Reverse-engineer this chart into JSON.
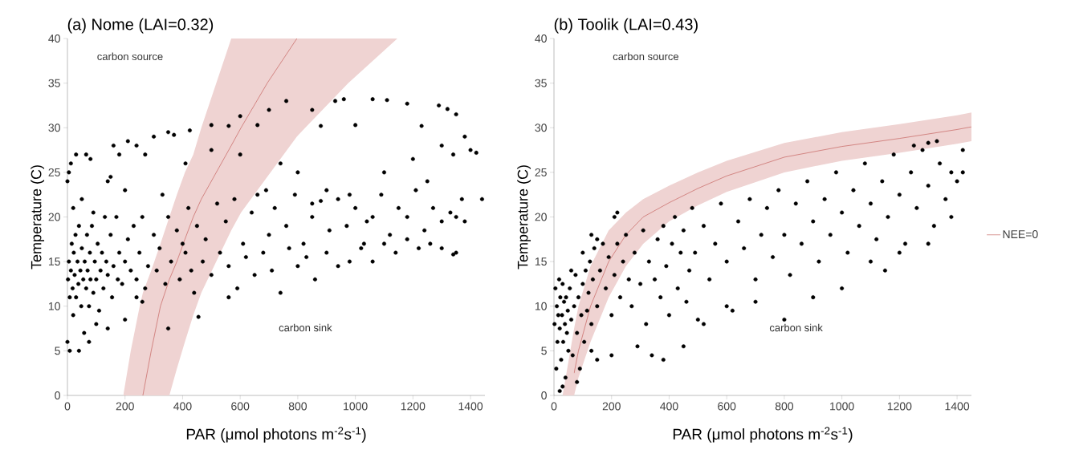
{
  "chart_data": [
    {
      "type": "scatter",
      "title": "(a) Nome (LAI=0.32)",
      "xlabel": "PAR (μmol photons m$^{-2}$s$^{-1}$)",
      "ylabel": "Temperature (C)",
      "annotations": [
        "carbon source",
        "carbon sink"
      ],
      "xlim": [
        0,
        1450
      ],
      "ylim": [
        0,
        40
      ],
      "xticks": [
        0,
        200,
        400,
        600,
        800,
        1000,
        1200,
        1400
      ],
      "yticks": [
        0,
        5,
        10,
        15,
        20,
        25,
        30,
        35,
        40
      ],
      "grid": false,
      "series": [
        {
          "type": "scatter",
          "color": "#000000",
          "marker": "circle",
          "x": [
            2,
            5,
            8,
            12,
            15,
            18,
            20,
            22,
            25,
            28,
            30,
            35,
            38,
            40,
            45,
            48,
            50,
            55,
            58,
            60,
            65,
            68,
            70,
            75,
            78,
            80,
            85,
            90,
            95,
            100,
            105,
            110,
            115,
            120,
            125,
            130,
            135,
            140,
            150,
            155,
            160,
            170,
            175,
            180,
            190,
            200,
            210,
            220,
            230,
            240,
            250,
            260,
            270,
            280,
            0,
            8,
            40,
            75,
            100,
            140,
            200,
            240,
            260,
            350,
            455,
            0,
            5,
            12,
            30,
            65,
            80,
            140,
            160,
            180,
            210,
            240,
            270,
            300,
            350,
            370,
            425,
            500,
            560,
            600,
            660,
            700,
            760,
            850,
            880,
            930,
            960,
            1000,
            1060,
            1110,
            1180,
            1230,
            1290,
            1320,
            1350,
            1400,
            1420,
            20,
            50,
            90,
            150,
            200,
            330,
            410,
            500,
            600,
            690,
            740,
            800,
            850,
            900,
            980,
            1040,
            1100,
            1200,
            1250,
            1300,
            1340,
            1380,
            300,
            320,
            350,
            380,
            400,
            420,
            450,
            480,
            520,
            550,
            580,
            610,
            640,
            660,
            700,
            720,
            760,
            790,
            820,
            850,
            880,
            910,
            940,
            970,
            1000,
            1030,
            1060,
            1090,
            1120,
            1150,
            1180,
            1210,
            1240,
            1270,
            1300,
            1330,
            1350,
            1370,
            1380,
            310,
            340,
            360,
            390,
            410,
            430,
            440,
            470,
            500,
            530,
            560,
            590,
            620,
            650,
            680,
            710,
            740,
            770,
            800,
            830,
            860,
            900,
            940,
            980,
            1020,
            1060,
            1100,
            1140,
            1180,
            1220,
            1260,
            1300,
            1340,
            1440,
            1350,
            560
          ],
          "values": [
            13,
            15,
            11,
            14,
            17,
            12,
            9,
            16,
            13.5,
            18,
            11,
            15,
            12.5,
            19,
            14,
            10,
            16.5,
            13,
            7,
            15,
            12,
            18,
            14,
            10,
            16,
            13,
            19,
            11.5,
            15,
            13,
            17,
            9.5,
            14,
            16,
            12,
            20,
            15,
            13.5,
            18,
            11,
            14.5,
            20,
            13,
            16,
            12.5,
            15,
            17.5,
            14,
            19,
            13,
            16,
            20,
            12,
            14.5,
            6,
            5,
            5,
            6,
            8,
            7.5,
            8.5,
            11,
            10.5,
            7.5,
            8.8,
            24,
            25,
            26,
            27,
            27,
            26.5,
            24,
            28,
            27,
            28.5,
            28,
            27,
            29,
            29.5,
            29.2,
            29.7,
            30.3,
            30.2,
            31.3,
            30.3,
            32,
            33,
            32,
            30.2,
            33,
            33.2,
            30.3,
            33.2,
            33.1,
            32.7,
            30.2,
            32.5,
            32.1,
            31.5,
            27.5,
            27.2,
            21,
            22,
            20.5,
            24.5,
            23,
            22.5,
            26,
            27.5,
            27,
            23,
            26,
            25,
            21.5,
            23,
            22.5,
            19.5,
            25,
            26.5,
            24,
            28,
            27,
            29,
            18,
            16.5,
            20,
            18.5,
            17,
            21,
            19,
            17.5,
            21.5,
            19.5,
            22,
            17,
            20.5,
            22.5,
            18,
            21,
            19,
            22.5,
            17,
            20,
            21.8,
            18.5,
            22,
            19,
            21,
            17,
            20,
            22.5,
            18,
            21,
            20,
            23,
            18.5,
            21,
            19.5,
            20.5,
            20,
            22,
            19.5,
            14,
            12.5,
            15,
            13,
            16,
            14,
            11.5,
            15,
            13.5,
            16,
            14.5,
            12,
            15.5,
            13.5,
            16,
            14,
            11.5,
            16.5,
            14.5,
            15.5,
            13,
            16,
            14.5,
            15,
            16.5,
            15,
            17,
            16,
            17.5,
            16.5,
            17,
            16.5,
            15.8,
            22,
            16,
            11
          ]
        },
        {
          "type": "line",
          "color": "#c0504d",
          "line_style": "solid",
          "marker": "none",
          "x": [
            194,
            220,
            251,
            262,
            291,
            323,
            354,
            380,
            408,
            437,
            465,
            517,
            569,
            603,
            694,
            797,
            826,
            975,
            1146
          ],
          "values": [
            null,
            null,
            null,
            0,
            5,
            10,
            13,
            15,
            17.5,
            20,
            22,
            25,
            28,
            30,
            35,
            40,
            null,
            null,
            null
          ],
          "upper": [
            0,
            5,
            10,
            11.5,
            14,
            17,
            20,
            22.5,
            25,
            27,
            30,
            35,
            40,
            40,
            40,
            40,
            40,
            40,
            40
          ],
          "lower": [
            0,
            0,
            0,
            0,
            0,
            0,
            0,
            3,
            6,
            9,
            11.5,
            15,
            18.5,
            20.5,
            24.5,
            29,
            30,
            35,
            40
          ]
        }
      ]
    },
    {
      "type": "scatter",
      "title": "(b) Toolik (LAI=0.43)",
      "xlabel": "PAR (μmol photons m$^{-2}$s$^{-1}$)",
      "ylabel": "Temperature (C)",
      "annotations": [
        "carbon source",
        "carbon sink"
      ],
      "xlim": [
        0,
        1450
      ],
      "ylim": [
        0,
        40
      ],
      "xticks": [
        0,
        200,
        400,
        600,
        800,
        1000,
        1200,
        1400
      ],
      "yticks": [
        0,
        5,
        10,
        15,
        20,
        25,
        30,
        35,
        40
      ],
      "grid": false,
      "legend": "right",
      "series": [
        {
          "type": "scatter",
          "color": "#000000",
          "marker": "circle",
          "x": [
            2,
            5,
            8,
            10,
            12,
            15,
            18,
            20,
            22,
            25,
            28,
            30,
            32,
            35,
            38,
            40,
            42,
            45,
            48,
            50,
            55,
            60,
            65,
            70,
            75,
            80,
            85,
            90,
            95,
            100,
            105,
            110,
            115,
            120,
            125,
            130,
            135,
            140,
            150,
            160,
            170,
            180,
            190,
            200,
            210,
            220,
            230,
            240,
            250,
            260,
            270,
            280,
            290,
            300,
            310,
            320,
            330,
            340,
            350,
            360,
            370,
            380,
            390,
            400,
            410,
            420,
            430,
            440,
            450,
            460,
            470,
            480,
            490,
            500,
            520,
            540,
            560,
            580,
            600,
            620,
            640,
            660,
            680,
            700,
            720,
            740,
            760,
            780,
            800,
            820,
            840,
            860,
            880,
            900,
            920,
            940,
            960,
            980,
            1000,
            1020,
            1040,
            1060,
            1080,
            1100,
            1120,
            1140,
            1160,
            1180,
            1200,
            1220,
            1240,
            1260,
            1280,
            1300,
            1320,
            1340,
            1360,
            1380,
            1400,
            1420,
            60,
            100,
            130,
            150,
            210,
            220,
            1250,
            1300,
            1330,
            20,
            30,
            80,
            130,
            150,
            200,
            380,
            450,
            520,
            600,
            700,
            800,
            900,
            1000,
            1100,
            1150,
            1200,
            1300,
            1380,
            1420
          ],
          "values": [
            8,
            12,
            3,
            10,
            6,
            9,
            13,
            7.5,
            11,
            4,
            9,
            12.5,
            6,
            10.5,
            8,
            2,
            11,
            7,
            9.5,
            5,
            12,
            8.5,
            4.5,
            10,
            13.5,
            7,
            11,
            3,
            9,
            12.5,
            6,
            14,
            9.5,
            11.5,
            15,
            8,
            13,
            16.5,
            10,
            14,
            17,
            12,
            15.5,
            9,
            13.5,
            17,
            11,
            15,
            18,
            13,
            10,
            16,
            5.5,
            12.5,
            18.5,
            8,
            15,
            4.5,
            13,
            17.5,
            11,
            19,
            14.5,
            9,
            17,
            20,
            12,
            16,
            18.5,
            10.5,
            14,
            21,
            16,
            8.5,
            19,
            13,
            17,
            21.5,
            15,
            9.5,
            19.5,
            16.5,
            22,
            13,
            18,
            21,
            15.5,
            23,
            18,
            13.5,
            21.5,
            17,
            24,
            19.5,
            15,
            22,
            18,
            25,
            20.5,
            16,
            23,
            19,
            26,
            21.5,
            17.5,
            24,
            20,
            27,
            22.5,
            17,
            25,
            21,
            27.5,
            23.5,
            19,
            26,
            22,
            25,
            24,
            27.5,
            14,
            16,
            18,
            17.5,
            20,
            20.5,
            28,
            28.3,
            28.5,
            0.5,
            1,
            1.5,
            5,
            4,
            4.5,
            4,
            5.5,
            8,
            10,
            10.5,
            8.5,
            11,
            12,
            15,
            14,
            16,
            17,
            20,
            25
          ]
        },
        {
          "type": "line",
          "name": "NEE=0",
          "color": "#c0504d",
          "line_style": "solid",
          "marker": "none",
          "x": [
            30,
            70,
            85,
            127,
            190,
            250,
            310,
            400,
            500,
            600,
            800,
            1000,
            1200,
            1400,
            1450
          ],
          "values": [
            null,
            2.5,
            5,
            10,
            15,
            18,
            20,
            21.6,
            23.2,
            24.6,
            26.7,
            27.9,
            28.8,
            29.8,
            30.1
          ],
          "upper": [
            0,
            7.5,
            10,
            14.5,
            18.5,
            20.5,
            22,
            23.5,
            25,
            26.3,
            28.3,
            29.5,
            30.4,
            31.4,
            31.7
          ],
          "lower": [
            0,
            0,
            2,
            6,
            11,
            14.5,
            17,
            19.5,
            21.3,
            22.8,
            25,
            26.3,
            27.2,
            28.2,
            28.5
          ]
        }
      ]
    }
  ]
}
